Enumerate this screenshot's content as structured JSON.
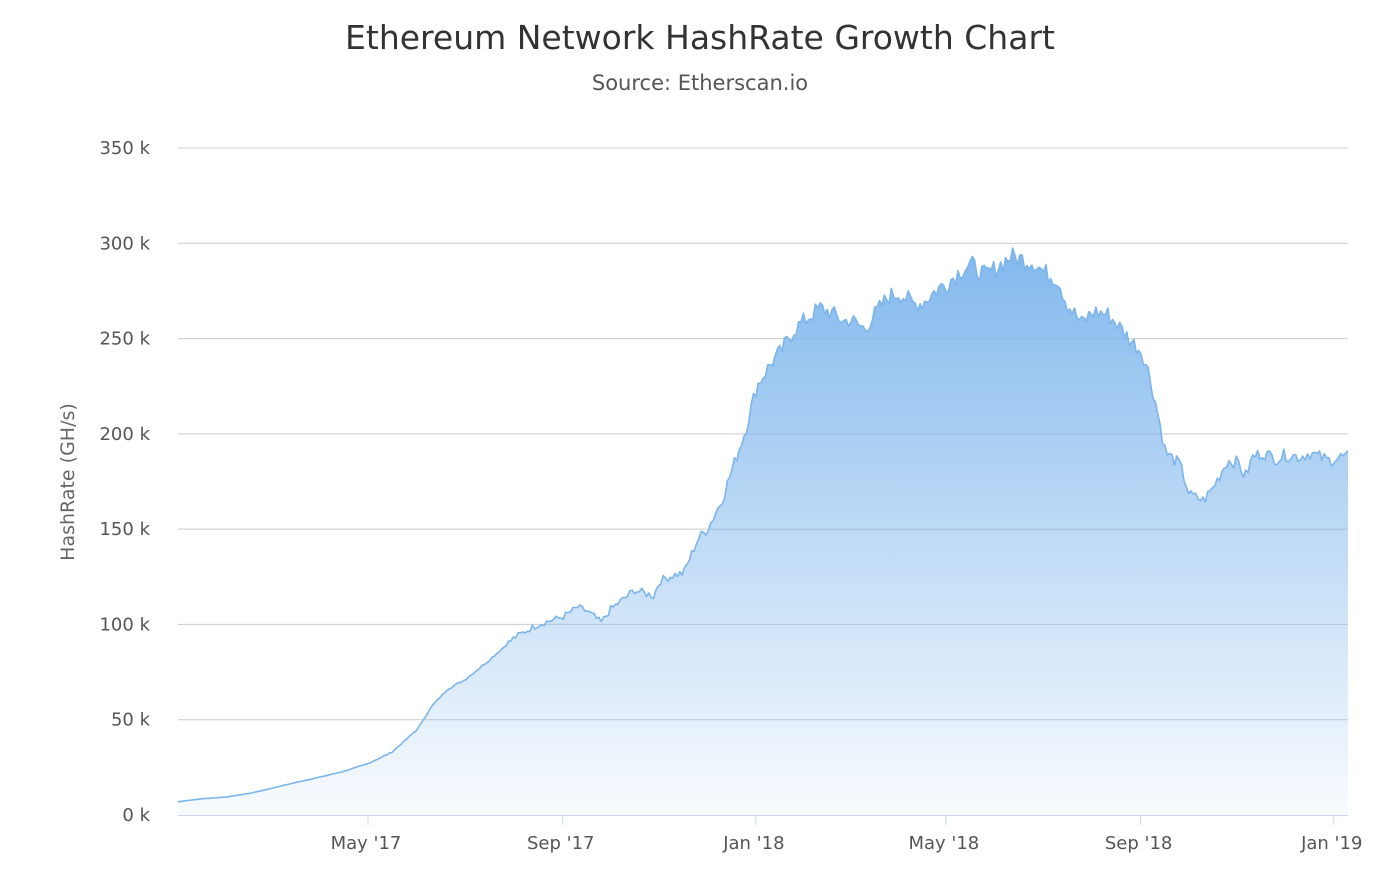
{
  "chart_data": {
    "type": "area",
    "title": "Ethereum Network HashRate Growth Chart",
    "subtitle": "Source: Etherscan.io",
    "ylabel": "HashRate (GH/s)",
    "xlabel": "",
    "ylim": [
      0,
      350000
    ],
    "y_ticks": [
      0,
      50000,
      100000,
      150000,
      200000,
      250000,
      300000,
      350000
    ],
    "y_tick_labels": [
      "0 k",
      "50 k",
      "100 k",
      "150 k",
      "200 k",
      "250 k",
      "300 k",
      "350 k"
    ],
    "x_range": [
      "2017-01-01",
      "2019-01-10"
    ],
    "x_ticks": [
      "2017-05-01",
      "2017-09-01",
      "2018-01-01",
      "2018-05-01",
      "2018-09-01",
      "2019-01-01"
    ],
    "x_tick_labels": [
      "May '17",
      "Sep '17",
      "Jan '18",
      "May '18",
      "Sep '18",
      "Jan '19"
    ],
    "grid": true,
    "colors": {
      "line": "#7cb5ec",
      "fill": "#7cb5ec",
      "grid": "#cccccc",
      "axis": "#ccd6eb"
    },
    "series": [
      {
        "name": "",
        "x": [
          "2017-01-01",
          "2017-01-16",
          "2017-02-01",
          "2017-02-16",
          "2017-03-01",
          "2017-03-16",
          "2017-04-01",
          "2017-04-16",
          "2017-05-01",
          "2017-05-16",
          "2017-06-01",
          "2017-06-10",
          "2017-06-20",
          "2017-07-01",
          "2017-07-10",
          "2017-07-16",
          "2017-08-01",
          "2017-08-16",
          "2017-09-01",
          "2017-09-10",
          "2017-09-16",
          "2017-09-25",
          "2017-10-01",
          "2017-10-16",
          "2017-10-28",
          "2017-11-01",
          "2017-11-10",
          "2017-11-16",
          "2017-11-25",
          "2017-12-01",
          "2017-12-10",
          "2017-12-16",
          "2017-12-25",
          "2018-01-01",
          "2018-01-10",
          "2018-01-16",
          "2018-01-25",
          "2018-02-01",
          "2018-02-10",
          "2018-02-16",
          "2018-02-25",
          "2018-03-01",
          "2018-03-10",
          "2018-03-16",
          "2018-03-25",
          "2018-04-01",
          "2018-04-10",
          "2018-04-16",
          "2018-04-25",
          "2018-05-01",
          "2018-05-10",
          "2018-05-16",
          "2018-05-25",
          "2018-06-01",
          "2018-06-10",
          "2018-06-16",
          "2018-06-25",
          "2018-07-01",
          "2018-07-10",
          "2018-07-16",
          "2018-07-25",
          "2018-08-01",
          "2018-08-10",
          "2018-08-16",
          "2018-08-25",
          "2018-09-01",
          "2018-09-05",
          "2018-09-10",
          "2018-09-16",
          "2018-09-25",
          "2018-10-01",
          "2018-10-10",
          "2018-10-16",
          "2018-10-25",
          "2018-11-01",
          "2018-11-05",
          "2018-11-10",
          "2018-11-16",
          "2018-11-25",
          "2018-12-01",
          "2018-12-10",
          "2018-12-16",
          "2018-12-22",
          "2018-12-28",
          "2019-01-01",
          "2019-01-05",
          "2019-01-10"
        ],
        "values": [
          7000,
          8500,
          9500,
          11500,
          14000,
          17000,
          20000,
          23000,
          27000,
          33000,
          45000,
          57000,
          66000,
          71000,
          77000,
          81000,
          93000,
          100000,
          104000,
          109000,
          107000,
          101000,
          108000,
          118000,
          115000,
          123000,
          126000,
          127000,
          145000,
          150000,
          165000,
          180000,
          202000,
          225000,
          237000,
          243000,
          255000,
          260000,
          266000,
          264000,
          259000,
          260000,
          255000,
          262000,
          272000,
          274000,
          268000,
          269000,
          276000,
          279000,
          286000,
          289000,
          283000,
          287000,
          293000,
          292000,
          290000,
          285000,
          281000,
          268000,
          258000,
          264000,
          263000,
          258000,
          249000,
          243000,
          233000,
          215000,
          190000,
          184000,
          168000,
          165000,
          172000,
          186000,
          185000,
          177000,
          188000,
          190000,
          187000,
          189000,
          188000,
          190000,
          188000,
          186000,
          187000,
          188000,
          188000
        ]
      }
    ]
  }
}
